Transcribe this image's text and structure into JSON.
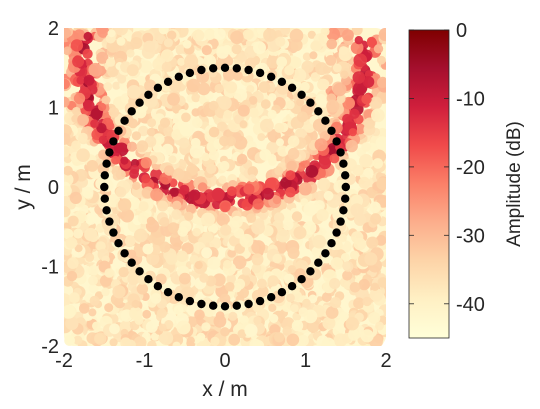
{
  "chart_data": {
    "type": "scatter",
    "description": "Sound-field amplitude map with circular loudspeaker array",
    "xlabel": "x / m",
    "ylabel": "y / m",
    "xlim": [
      -2,
      2
    ],
    "ylim": [
      -2,
      2
    ],
    "xticks": [
      "-2",
      "-1",
      "0",
      "1",
      "2"
    ],
    "yticks": [
      "-2",
      "-1",
      "0",
      "1",
      "2"
    ],
    "grid": false,
    "colorbar": {
      "label": "Amplitude (dB)",
      "range": [
        -45,
        0
      ],
      "ticks": [
        "0",
        "-10",
        "-20",
        "-30",
        "-40"
      ],
      "tick_values": [
        0,
        -10,
        -20,
        -30,
        -40
      ],
      "colormap": [
        "#ffffd9",
        "#fff0c4",
        "#fdd4a8",
        "#fcae8c",
        "#fb8068",
        "#f04a4a",
        "#d01f3c",
        "#a50f2e",
        "#7f0000"
      ]
    },
    "loudspeaker_array": {
      "shape": "circle",
      "center": [
        0,
        0
      ],
      "radius": 1.5,
      "count": 64,
      "color": "#000000"
    },
    "field_regions": [
      {
        "name": "background",
        "amplitude_db": -42
      },
      {
        "name": "focused-arc",
        "center": [
          0,
          1.6
        ],
        "radius": 1.75,
        "amplitude_db": -15
      },
      {
        "name": "upper-left-edge",
        "x_range": [
          -2,
          -1.5
        ],
        "y_range": [
          1.0,
          2.0
        ],
        "amplitude_db": -22
      },
      {
        "name": "upper-right-edge",
        "x_range": [
          1.3,
          2.0
        ],
        "y_range": [
          0.8,
          2.0
        ],
        "amplitude_db": -25
      }
    ]
  }
}
